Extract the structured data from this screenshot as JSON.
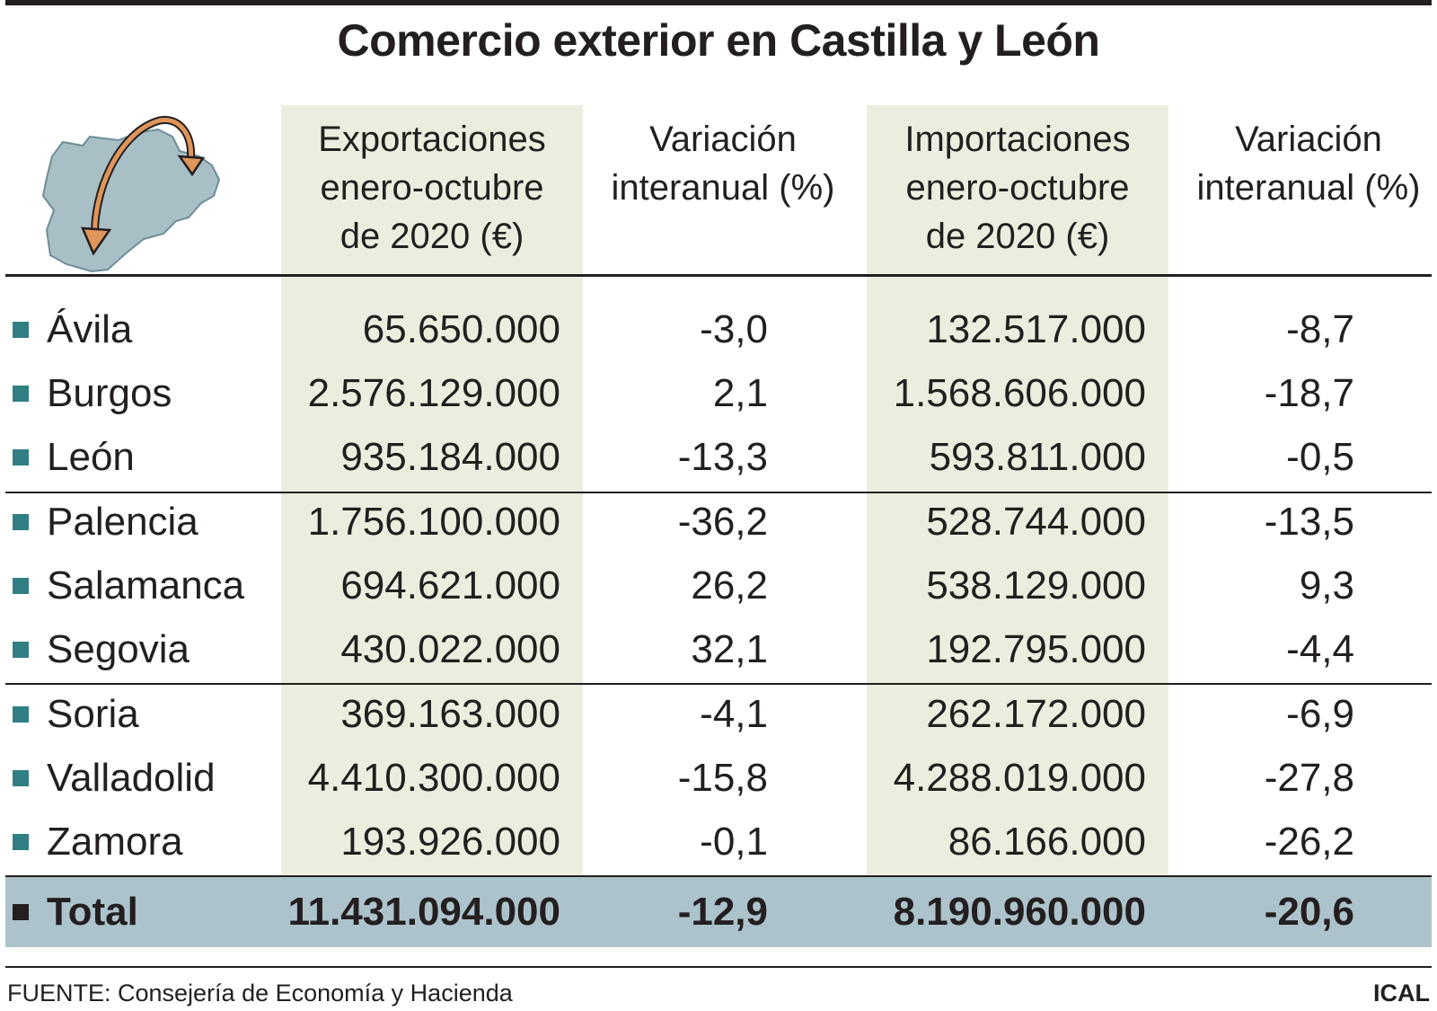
{
  "chart_data": {
    "type": "table",
    "title": "Comercio exterior en Castilla y León",
    "columns": [
      [
        "Exportaciones",
        "enero-octubre",
        "de 2020 (€)"
      ],
      [
        "Variación",
        "interanual (%)"
      ],
      [
        "Importaciones",
        "enero-octubre",
        "de 2020 (€)"
      ],
      [
        "Variación",
        "interanual (%)"
      ]
    ],
    "rows": [
      [
        "Ávila",
        "65.650.000",
        "-3,0",
        "132.517.000",
        "-8,7"
      ],
      [
        "Burgos",
        "2.576.129.000",
        "2,1",
        "1.568.606.000",
        "-18,7"
      ],
      [
        "León",
        "935.184.000",
        "-13,3",
        "593.811.000",
        "-0,5"
      ],
      [
        "Palencia",
        "1.756.100.000",
        "-36,2",
        "528.744.000",
        "-13,5"
      ],
      [
        "Salamanca",
        "694.621.000",
        "26,2",
        "538.129.000",
        "9,3"
      ],
      [
        "Segovia",
        "430.022.000",
        "32,1",
        "192.795.000",
        "-4,4"
      ],
      [
        "Soria",
        "369.163.000",
        "-4,1",
        "262.172.000",
        "-6,9"
      ],
      [
        "Valladolid",
        "4.410.300.000",
        "-15,8",
        "4.288.019.000",
        "-27,8"
      ],
      [
        "Zamora",
        "193.926.000",
        "-0,1",
        "86.166.000",
        "-26,2"
      ]
    ],
    "total": [
      "Total",
      "11.431.094.000",
      "-12,9",
      "8.190.960.000",
      "-20,6"
    ]
  },
  "footer": {
    "source": "FUENTE: Consejería de Economía y Hacienda",
    "brand": "ICAL"
  },
  "icons": {
    "map": "castilla-leon-map-icon"
  },
  "colors": {
    "text": "#231f20",
    "shade": "#ededdf",
    "total_band": "#adc3cb",
    "bullet": "#2f7f83",
    "map_fill": "#a8bfc6",
    "arrow": "#e0965a"
  }
}
